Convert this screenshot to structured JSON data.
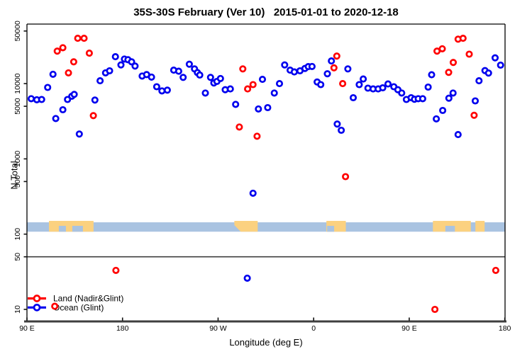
{
  "title": "35S-30S February (Ver 10)   2015-01-01 to 2020-12-18",
  "axes": {
    "x_label": "Longitude (deg E)",
    "y_label": "N Total",
    "x_ticks": [
      {
        "t": 0,
        "label": "90 E"
      },
      {
        "t": 90,
        "label": "180"
      },
      {
        "t": 180,
        "label": "90 W"
      },
      {
        "t": 270,
        "label": "0"
      },
      {
        "t": 360,
        "label": "90 E"
      },
      {
        "t": 450,
        "label": "180"
      }
    ],
    "y_ticks": [
      10,
      50,
      100,
      500,
      1000,
      5000,
      10000,
      50000
    ],
    "y_scale": "log",
    "ref_line_value": 50
  },
  "legend": [
    {
      "label": "Land (Nadir&Glint)",
      "color": "#ff0000"
    },
    {
      "label": "Ocean (Glint)",
      "color": "#0000ee"
    }
  ],
  "colors": {
    "land": "#ff0000",
    "ocean": "#0000ee",
    "map_ocean": "#a9c3e1",
    "map_land": "#fbd180",
    "axis": "#000000",
    "frame_heavy": "#3f3f3f",
    "ref_line": "#3f3f3f"
  },
  "map_band": {
    "value_y_range": [
      115,
      150
    ],
    "land_patches": [
      {
        "t1": 20.7,
        "t2": 62.7,
        "notches": [
          [
            30,
            36.7
          ],
          [
            42.7,
            52.7
          ]
        ],
        "slant_left": false
      },
      {
        "t1": 195.3,
        "t2": 217.3,
        "notches": [],
        "slant_left": true
      },
      {
        "t1": 282.0,
        "t2": 300.3,
        "notches": [
          [
            282.7,
            289.3
          ]
        ],
        "slant_left": false
      },
      {
        "t1": 382.3,
        "t2": 418.0,
        "notches": [
          [
            394,
            403
          ]
        ],
        "slant_left": false
      },
      {
        "t1": 422.3,
        "t2": 431.0,
        "notches": [],
        "slant_left": false
      }
    ]
  },
  "chart_data": {
    "type": "scatter",
    "x_axis_note": "x = degrees eastward along axis, 0 at left edge (90E) to 450 at right edge (180)",
    "xlim": [
      0,
      450
    ],
    "ylim": [
      7,
      63000
    ],
    "yscale": "log",
    "grid": false,
    "legend_position": "bottom-left",
    "series": [
      {
        "name": "Land (Nadir&Glint)",
        "color": "#ff0000",
        "points": [
          [
            28.5,
            27000
          ],
          [
            33.8,
            30000
          ],
          [
            47.8,
            40000
          ],
          [
            53.8,
            40000
          ],
          [
            58.7,
            25400
          ],
          [
            44,
            19500
          ],
          [
            39.1,
            13900
          ],
          [
            62.5,
            3760
          ],
          [
            83.8,
            33
          ],
          [
            26.2,
            11
          ],
          [
            200,
            2650
          ],
          [
            203.3,
            15700
          ],
          [
            207.8,
            8500
          ],
          [
            212.9,
            9700
          ],
          [
            216.7,
            2000
          ],
          [
            289.1,
            16200
          ],
          [
            291.8,
            23200
          ],
          [
            297.3,
            10000
          ],
          [
            300,
            580
          ],
          [
            384.2,
            10
          ],
          [
            386.2,
            27000
          ],
          [
            391.1,
            29000
          ],
          [
            397.1,
            14100
          ],
          [
            401.5,
            19100
          ],
          [
            406,
            39000
          ],
          [
            410.7,
            40000
          ],
          [
            416.5,
            24600
          ],
          [
            421.1,
            3800
          ],
          [
            441.5,
            33
          ]
        ]
      },
      {
        "name": "Ocean (Glint)",
        "color": "#0000ee",
        "points": [
          [
            4,
            6300
          ],
          [
            9.3,
            6100
          ],
          [
            13.8,
            6150
          ],
          [
            19.5,
            8900
          ],
          [
            24.5,
            13300
          ],
          [
            27.1,
            3440
          ],
          [
            33.8,
            4500
          ],
          [
            38.2,
            6150
          ],
          [
            42.2,
            6800
          ],
          [
            44.5,
            7200
          ],
          [
            49.3,
            2140
          ],
          [
            64,
            6050
          ],
          [
            68.9,
            10900
          ],
          [
            74,
            13900
          ],
          [
            77.8,
            14800
          ],
          [
            83.3,
            22800
          ],
          [
            88.5,
            17700
          ],
          [
            91.8,
            21200
          ],
          [
            95.1,
            20800
          ],
          [
            98.5,
            19500
          ],
          [
            101.8,
            17100
          ],
          [
            108.5,
            12600
          ],
          [
            112.7,
            13200
          ],
          [
            117.3,
            12200
          ],
          [
            122.2,
            9100
          ],
          [
            127.1,
            8000
          ],
          [
            132.2,
            8200
          ],
          [
            138.2,
            15100
          ],
          [
            142.9,
            14600
          ],
          [
            147.1,
            12100
          ],
          [
            152.9,
            18100
          ],
          [
            157.8,
            15700
          ],
          [
            160.5,
            14000
          ],
          [
            162.7,
            13000
          ],
          [
            168,
            7500
          ],
          [
            172.9,
            12100
          ],
          [
            176,
            10200
          ],
          [
            178.9,
            10700
          ],
          [
            182.2,
            11700
          ],
          [
            186.7,
            8300
          ],
          [
            191.5,
            8500
          ],
          [
            196.5,
            5300
          ],
          [
            207.5,
            26
          ],
          [
            212.9,
            350
          ],
          [
            218,
            4600
          ],
          [
            221.8,
            11400
          ],
          [
            226.7,
            4800
          ],
          [
            232.9,
            7500
          ],
          [
            237.8,
            10000
          ],
          [
            242.7,
            17700
          ],
          [
            247.8,
            15100
          ],
          [
            251.8,
            14300
          ],
          [
            257.1,
            14800
          ],
          [
            261.8,
            15900
          ],
          [
            264.9,
            16800
          ],
          [
            268.5,
            16900
          ],
          [
            273.3,
            10500
          ],
          [
            276.7,
            9700
          ],
          [
            282.9,
            13500
          ],
          [
            286.7,
            20000
          ],
          [
            292.2,
            2900
          ],
          [
            296,
            2400
          ],
          [
            302.2,
            15700
          ],
          [
            307.3,
            6500
          ],
          [
            312.9,
            9700
          ],
          [
            316.7,
            11500
          ],
          [
            321.1,
            8700
          ],
          [
            326,
            8500
          ],
          [
            330.7,
            8500
          ],
          [
            335.1,
            8800
          ],
          [
            340,
            9900
          ],
          [
            345.5,
            9100
          ],
          [
            349.3,
            8300
          ],
          [
            352.9,
            7500
          ],
          [
            357.3,
            6150
          ],
          [
            361.8,
            6500
          ],
          [
            364.9,
            6200
          ],
          [
            368.5,
            6300
          ],
          [
            372.7,
            6300
          ],
          [
            377.8,
            9000
          ],
          [
            381.1,
            13100
          ],
          [
            385.5,
            3400
          ],
          [
            391.5,
            4400
          ],
          [
            397.3,
            6400
          ],
          [
            401.3,
            7500
          ],
          [
            406,
            2100
          ],
          [
            422.2,
            5900
          ],
          [
            425.7,
            10900
          ],
          [
            431.3,
            14900
          ],
          [
            434.7,
            13800
          ],
          [
            440.9,
            22000
          ],
          [
            446,
            17600
          ]
        ]
      }
    ]
  }
}
